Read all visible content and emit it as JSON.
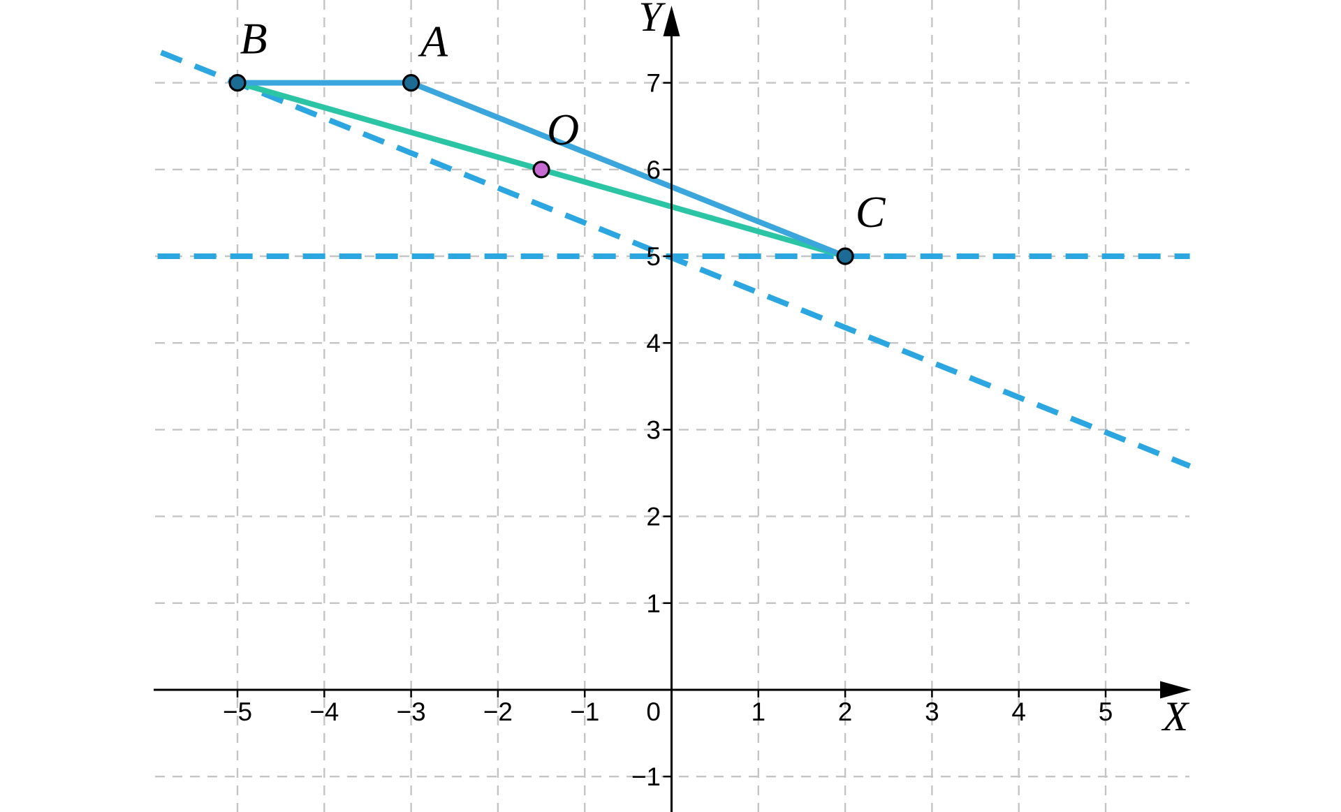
{
  "figure": {
    "background": "#ffffff",
    "description": "Coordinate plane with triangle-like construction: points A, B, C, midpoint O of BC, dashed auxiliary lines"
  },
  "chart_data": {
    "type": "scatter",
    "title": "",
    "xlabel": "X",
    "ylabel": "Y",
    "origin_label": "0",
    "xlim": [
      -5.95,
      6.0
    ],
    "ylim": [
      -1.45,
      7.95
    ],
    "grid": true,
    "x_ticks": [
      -5,
      -4,
      -3,
      -2,
      -1,
      1,
      2,
      3,
      4,
      5
    ],
    "y_ticks": [
      7,
      6,
      5,
      4,
      3,
      2,
      1,
      -1
    ],
    "grid_x": [
      -5,
      -4,
      -3,
      -2,
      -1,
      1,
      2,
      3,
      4,
      5
    ],
    "grid_y": [
      7,
      6,
      5,
      4,
      3,
      2,
      1,
      -1
    ],
    "points": [
      {
        "name": "A",
        "x": -3,
        "y": 7,
        "fill": "#1B6B94"
      },
      {
        "name": "B",
        "x": -5,
        "y": 7,
        "fill": "#1B6B94"
      },
      {
        "name": "C",
        "x": 2,
        "y": 5,
        "fill": "#1B6B94"
      },
      {
        "name": "O",
        "x": -1.5,
        "y": 6,
        "fill": "#C76BD2"
      }
    ],
    "segments": [
      {
        "name": "segment-BA",
        "from": "B",
        "to": "A",
        "color": "#3AA6DC",
        "style": "solid"
      },
      {
        "name": "segment-AC",
        "from": "A",
        "to": "C",
        "color": "#3AA6DC",
        "style": "solid"
      },
      {
        "name": "segment-BC",
        "from": "B",
        "to": "C",
        "color": "#2BC5A6",
        "style": "solid"
      }
    ],
    "lines": [
      {
        "name": "dashed-horizontal-y5",
        "x1": -5.92,
        "y1": 5.0,
        "x2": 5.97,
        "y2": 5.0,
        "color": "#2BA6E0",
        "style": "dashed"
      },
      {
        "name": "dashed-diagonal-through-B",
        "x1": -5.88,
        "y1": 7.35,
        "x2": 5.97,
        "y2": 2.58,
        "color": "#2BA6E0",
        "style": "dashed"
      }
    ],
    "colors": {
      "solid_blue": "#3AA6DC",
      "teal": "#2BC5A6",
      "dashed_blue": "#2BA6E0",
      "vertex_fill": "#1B6B94",
      "midpoint_fill": "#C76BD2",
      "grid": "#C4C4C4",
      "axis": "#000000",
      "label": "#000000"
    },
    "legend": null
  }
}
